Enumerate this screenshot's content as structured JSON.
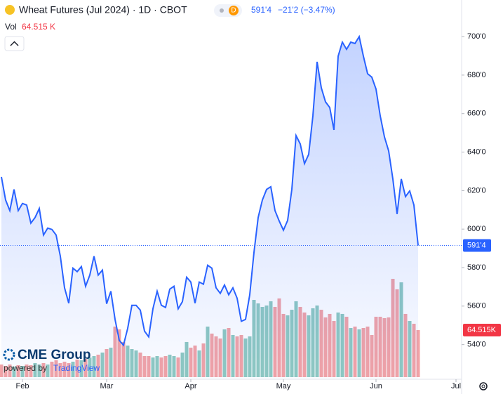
{
  "header": {
    "symbol": "Wheat Futures (Jul 2024) · 1D · CBOT",
    "badge": "D",
    "last": "591'4",
    "change": "−21'2 (−3.47%)",
    "vol_title": "Vol",
    "vol_value": "64.515 K"
  },
  "branding": {
    "logo": "CME Group",
    "powered": "powered by",
    "tv": "TradingView"
  },
  "chart_data": {
    "type": "line",
    "x": [
      0,
      1,
      2,
      3,
      4,
      5,
      6,
      7,
      8,
      9,
      10,
      11,
      12,
      13,
      14,
      15,
      16,
      17,
      18,
      19,
      20,
      21,
      22,
      23,
      24,
      25,
      26,
      27,
      28,
      29,
      30,
      31,
      32,
      33,
      34,
      35,
      36,
      37,
      38,
      39,
      40,
      41,
      42,
      43,
      44,
      45,
      46,
      47,
      48,
      49,
      50,
      51,
      52,
      53,
      54,
      55,
      56,
      57,
      58,
      59,
      60,
      61,
      62,
      63,
      64,
      65,
      66,
      67,
      68,
      69,
      70,
      71,
      72,
      73,
      74,
      75,
      76,
      77,
      78,
      79,
      80,
      81,
      82,
      83,
      84,
      85,
      86,
      87,
      88,
      89,
      90,
      91,
      92,
      93,
      94,
      95,
      96,
      97,
      98,
      99
    ],
    "series": [
      {
        "name": "Price",
        "color": "#2962ff",
        "values": [
          627.1,
          615.1,
          609.6,
          620.6,
          609.6,
          613.3,
          612.5,
          603.1,
          606,
          610.7,
          596.9,
          600.5,
          599.8,
          596.9,
          585.9,
          569.5,
          561.5,
          579.7,
          577.9,
          580.5,
          570.3,
          576.1,
          585.9,
          576.1,
          578.7,
          561.2,
          567.7,
          553.1,
          542.2,
          539.7,
          548.4,
          560.4,
          560.4,
          557.9,
          547,
          544,
          558.6,
          567.7,
          560.4,
          559.3,
          568.8,
          570.3,
          558.6,
          562.3,
          575,
          572.5,
          561.5,
          572.5,
          571.4,
          581.2,
          579.7,
          569.5,
          566.6,
          571,
          565.9,
          569.5,
          564.1,
          552.1,
          553.1,
          565.9,
          587.8,
          606,
          615.1,
          620.6,
          622,
          609.6,
          604.2,
          599.4,
          604.5,
          620.6,
          648.6,
          644.2,
          634,
          638.8,
          658.8,
          686.9,
          673.4,
          666.1,
          663.2,
          651.5,
          689.8,
          697.1,
          693.4,
          697.1,
          696.4,
          700,
          689.8,
          680.7,
          678.9,
          672.7,
          658.8,
          647.9,
          640.6,
          626,
          607.8,
          626,
          616.9,
          619.8,
          612.5,
          591.5
        ]
      },
      {
        "name": "Vol",
        "up_color": "#8fc9c1",
        "down_color": "#f2a3a6",
        "values": [
          17.3,
          15.4,
          17.3,
          14.4,
          16.4,
          15.4,
          17.3,
          16.4,
          19.3,
          17.3,
          19.3,
          17.3,
          21.2,
          23.1,
          19.3,
          21.2,
          19.3,
          21.2,
          24.1,
          23.1,
          25,
          27,
          28.9,
          30.8,
          33.7,
          38.5,
          40.4,
          69.3,
          65.5,
          48.2,
          43.3,
          38.5,
          36.6,
          33.7,
          28.9,
          28.9,
          27,
          28.9,
          27,
          28.9,
          30.8,
          28.9,
          27,
          33.7,
          48.2,
          40.4,
          43.3,
          36.6,
          46.2,
          69.3,
          59.7,
          55.9,
          53,
          65.5,
          67.4,
          57.8,
          55.9,
          57.8,
          53,
          55.9,
          105.9,
          101.1,
          96.3,
          98.2,
          104,
          96.3,
          107.9,
          86.7,
          84.7,
          92.4,
          104,
          96.3,
          88.6,
          84.7,
          94.4,
          98.2,
          92.4,
          81.9,
          86.7,
          77,
          88.6,
          86.7,
          82.8,
          67.4,
          69.3,
          65.5,
          67.4,
          69.3,
          57.8,
          82.8,
          82.8,
          80.9,
          81.9,
          134.8,
          120.4,
          130,
          86.7,
          77,
          73.2,
          64.515
        ]
      }
    ],
    "last_label": "591'4",
    "vol_label": "64.515K",
    "xlim": [
      -0.33,
      109.33
    ],
    "xticks": [
      {
        "value": 5,
        "label": "Feb"
      },
      {
        "value": 25,
        "label": "Mar"
      },
      {
        "value": 45,
        "label": "Apr"
      },
      {
        "value": 67,
        "label": "May"
      },
      {
        "value": 89,
        "label": "Jun"
      },
      {
        "value": 108,
        "label": "Jul"
      }
    ],
    "ylim": [
      522,
      719
    ],
    "yticks": [
      {
        "value": 540,
        "label": "540'0"
      },
      {
        "value": 560,
        "label": "560'0"
      },
      {
        "value": 580,
        "label": "580'0"
      },
      {
        "value": 600,
        "label": "600'0"
      },
      {
        "value": 620,
        "label": "620'0"
      },
      {
        "value": 640,
        "label": "640'0"
      },
      {
        "value": 660,
        "label": "660'0"
      },
      {
        "value": 680,
        "label": "680'0"
      },
      {
        "value": 700,
        "label": "700'0"
      }
    ]
  }
}
